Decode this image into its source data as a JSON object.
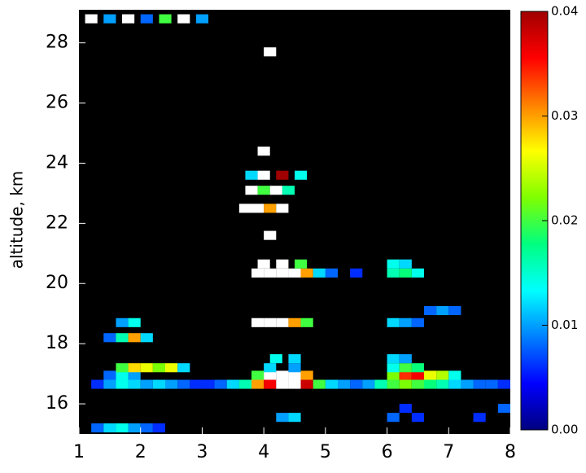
{
  "chart_data": {
    "type": "heatmap",
    "y_label": "altitude, km",
    "xlim": [
      1,
      8
    ],
    "ylim": [
      15,
      29.1
    ],
    "xticks": [
      1,
      2,
      3,
      4,
      5,
      6,
      7,
      8
    ],
    "yticks": [
      16,
      18,
      20,
      22,
      24,
      26,
      28
    ],
    "zlim": [
      0,
      0.04
    ],
    "zticks": [
      {
        "value": 0,
        "label": "0.00"
      },
      {
        "value": 0.01,
        "label": "0.01"
      },
      {
        "value": 0.02,
        "label": "0.02"
      },
      {
        "value": 0.03,
        "label": "0.03"
      },
      {
        "value": 0.04,
        "label": "0.04"
      }
    ],
    "colormap": [
      "#000080",
      "#0000ff",
      "#0080ff",
      "#00ffff",
      "#00ff80",
      "#80ff00",
      "#ffff00",
      "#ff8000",
      "#ff0000",
      "#a00000"
    ],
    "over_color": "#ffffff",
    "background": "#000000",
    "rows": [
      {
        "y": 15.2,
        "x": [
          1.3,
          1.5,
          1.7,
          1.9,
          2.1,
          2.3
        ],
        "values": [
          0.008,
          0.012,
          0.014,
          0.01,
          0.008,
          0.006
        ]
      },
      {
        "y": 15.55,
        "x": [
          4.3,
          4.5,
          6.1,
          6.5,
          7.5
        ],
        "values": [
          0.01,
          0.012,
          0.008,
          0.006,
          0.006
        ]
      },
      {
        "y": 15.85,
        "x": [
          6.3,
          7.9
        ],
        "values": [
          0.006,
          0.008
        ]
      },
      {
        "y": 16.65,
        "x": [
          1.3,
          1.5,
          1.7,
          1.9,
          2.1,
          2.3,
          2.5,
          2.7,
          2.9,
          3.1,
          3.3,
          3.5,
          3.7,
          3.9,
          4.1,
          4.3,
          4.5,
          4.7,
          4.9,
          5.1,
          5.3,
          5.5,
          5.7,
          5.9,
          6.1,
          6.3,
          6.5,
          6.7,
          6.9,
          7.1,
          7.3,
          7.5,
          7.7,
          7.9
        ],
        "values": [
          0.006,
          0.01,
          0.014,
          0.012,
          0.01,
          0.012,
          0.01,
          0.008,
          0.006,
          0.006,
          0.008,
          0.012,
          0.016,
          0.03,
          0.036,
          0.045,
          0.045,
          0.038,
          0.02,
          0.012,
          0.01,
          0.008,
          0.01,
          0.016,
          0.02,
          0.022,
          0.02,
          0.018,
          0.016,
          0.012,
          0.01,
          0.008,
          0.008,
          0.006
        ]
      },
      {
        "y": 16.95,
        "x": [
          1.5,
          1.7,
          1.9,
          3.9,
          4.1,
          4.3,
          4.5,
          4.7,
          6.1,
          6.3,
          6.5,
          6.7,
          6.9,
          7.1
        ],
        "values": [
          0.008,
          0.014,
          0.01,
          0.02,
          0.045,
          0.045,
          0.045,
          0.03,
          0.022,
          0.034,
          0.036,
          0.026,
          0.024,
          0.014
        ]
      },
      {
        "y": 17.2,
        "x": [
          1.7,
          1.9,
          2.1,
          2.3,
          2.5,
          2.7,
          4.1,
          4.5,
          6.1,
          6.3,
          6.5
        ],
        "values": [
          0.02,
          0.028,
          0.026,
          0.022,
          0.026,
          0.012,
          0.012,
          0.01,
          0.014,
          0.02,
          0.018
        ]
      },
      {
        "y": 17.5,
        "x": [
          4.2,
          4.5,
          6.1,
          6.3
        ],
        "values": [
          0.014,
          0.012,
          0.012,
          0.01
        ]
      },
      {
        "y": 18.2,
        "x": [
          1.5,
          1.7,
          1.9,
          2.1
        ],
        "values": [
          0.008,
          0.016,
          0.03,
          0.012
        ]
      },
      {
        "y": 18.7,
        "x": [
          1.7,
          1.9,
          3.9,
          4.1,
          4.3,
          4.5,
          4.7,
          6.1,
          6.3,
          6.5
        ],
        "values": [
          0.01,
          0.014,
          0.045,
          0.045,
          0.045,
          0.03,
          0.02,
          0.012,
          0.01,
          0.008
        ]
      },
      {
        "y": 19.1,
        "x": [
          6.7,
          6.9,
          7.1
        ],
        "values": [
          0.008,
          0.01,
          0.008
        ]
      },
      {
        "y": 20.35,
        "x": [
          3.9,
          4.1,
          4.3,
          4.5,
          4.7,
          4.9,
          5.1,
          5.5,
          6.1,
          6.3,
          6.5
        ],
        "values": [
          0.045,
          0.045,
          0.045,
          0.045,
          0.03,
          0.012,
          0.008,
          0.006,
          0.016,
          0.018,
          0.014
        ]
      },
      {
        "y": 20.65,
        "x": [
          4.0,
          4.3,
          4.6,
          6.1,
          6.3
        ],
        "values": [
          0.045,
          0.045,
          0.02,
          0.014,
          0.012
        ]
      },
      {
        "y": 21.6,
        "x": [
          4.1
        ],
        "values": [
          0.045
        ]
      },
      {
        "y": 22.5,
        "x": [
          3.7,
          3.9,
          4.1,
          4.3
        ],
        "values": [
          0.045,
          0.045,
          0.03,
          0.045
        ]
      },
      {
        "y": 23.1,
        "x": [
          3.8,
          4.0,
          4.2,
          4.4
        ],
        "values": [
          0.045,
          0.02,
          0.045,
          0.016
        ]
      },
      {
        "y": 23.6,
        "x": [
          3.8,
          4.0,
          4.3,
          4.6
        ],
        "values": [
          0.012,
          0.045,
          0.04,
          0.014
        ]
      },
      {
        "y": 24.4,
        "x": [
          4.0
        ],
        "values": [
          0.045
        ]
      },
      {
        "y": 27.7,
        "x": [
          4.1
        ],
        "values": [
          0.045
        ]
      },
      {
        "y": 28.8,
        "x": [
          1.2,
          1.5,
          1.8,
          2.1,
          2.4,
          2.7,
          3.0
        ],
        "values": [
          0.045,
          0.01,
          0.045,
          0.008,
          0.02,
          0.045,
          0.01
        ]
      }
    ]
  }
}
